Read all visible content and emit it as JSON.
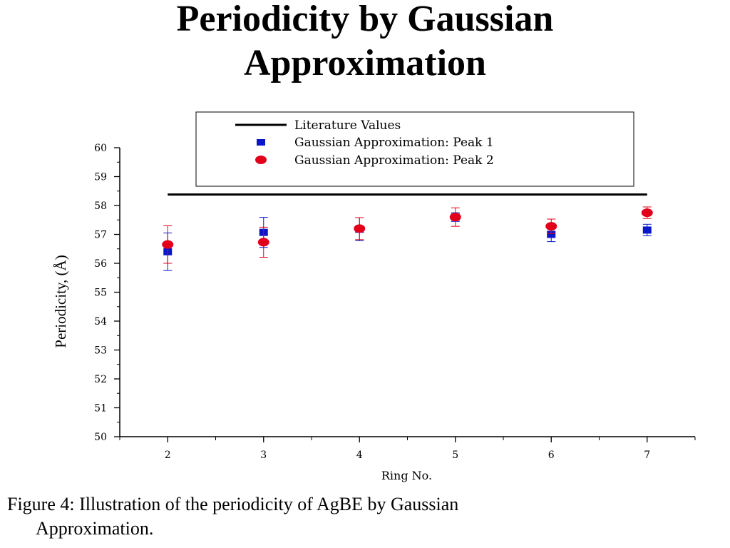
{
  "slide": {
    "title_line1": "Periodicity by Gaussian",
    "title_line2": "Approximation",
    "caption_line1": "Figure 4: Illustration of  the periodicity of  AgBE by Gaussian",
    "caption_line2": "Approximation."
  },
  "chart_data": {
    "type": "scatter",
    "xlabel": "Ring No.",
    "ylabel": "Periodicity, (Å)",
    "xlim": [
      1.5,
      7.5
    ],
    "ylim": [
      50,
      60
    ],
    "x_ticks": [
      2,
      3,
      4,
      5,
      6,
      7
    ],
    "y_ticks": [
      50,
      51,
      52,
      53,
      54,
      55,
      56,
      57,
      58,
      59,
      60
    ],
    "x_minor_ticks": [
      1.5,
      2.5,
      3.5,
      4.5,
      5.5,
      6.5,
      7.5
    ],
    "legend_position": "top-right",
    "series": [
      {
        "name": "Literature Values",
        "kind": "line",
        "color": "#000000",
        "x": [
          2,
          7
        ],
        "y": [
          58.38,
          58.38
        ]
      },
      {
        "name": "Gaussian Approximation: Peak 1",
        "kind": "square",
        "color": "#0a17c9",
        "x": [
          2,
          3,
          4,
          5,
          6,
          7
        ],
        "y": [
          56.4,
          57.07,
          57.18,
          57.6,
          57.0,
          57.15
        ],
        "err": [
          0.65,
          0.52,
          0.4,
          0.15,
          0.25,
          0.2
        ]
      },
      {
        "name": "Gaussian Approximation: Peak 2",
        "kind": "circle",
        "color": "#e3001b",
        "x": [
          2,
          3,
          4,
          5,
          6,
          7
        ],
        "y": [
          56.65,
          56.73,
          57.2,
          57.6,
          57.28,
          57.75
        ],
        "err": [
          0.65,
          0.52,
          0.38,
          0.32,
          0.25,
          0.2
        ]
      }
    ]
  }
}
